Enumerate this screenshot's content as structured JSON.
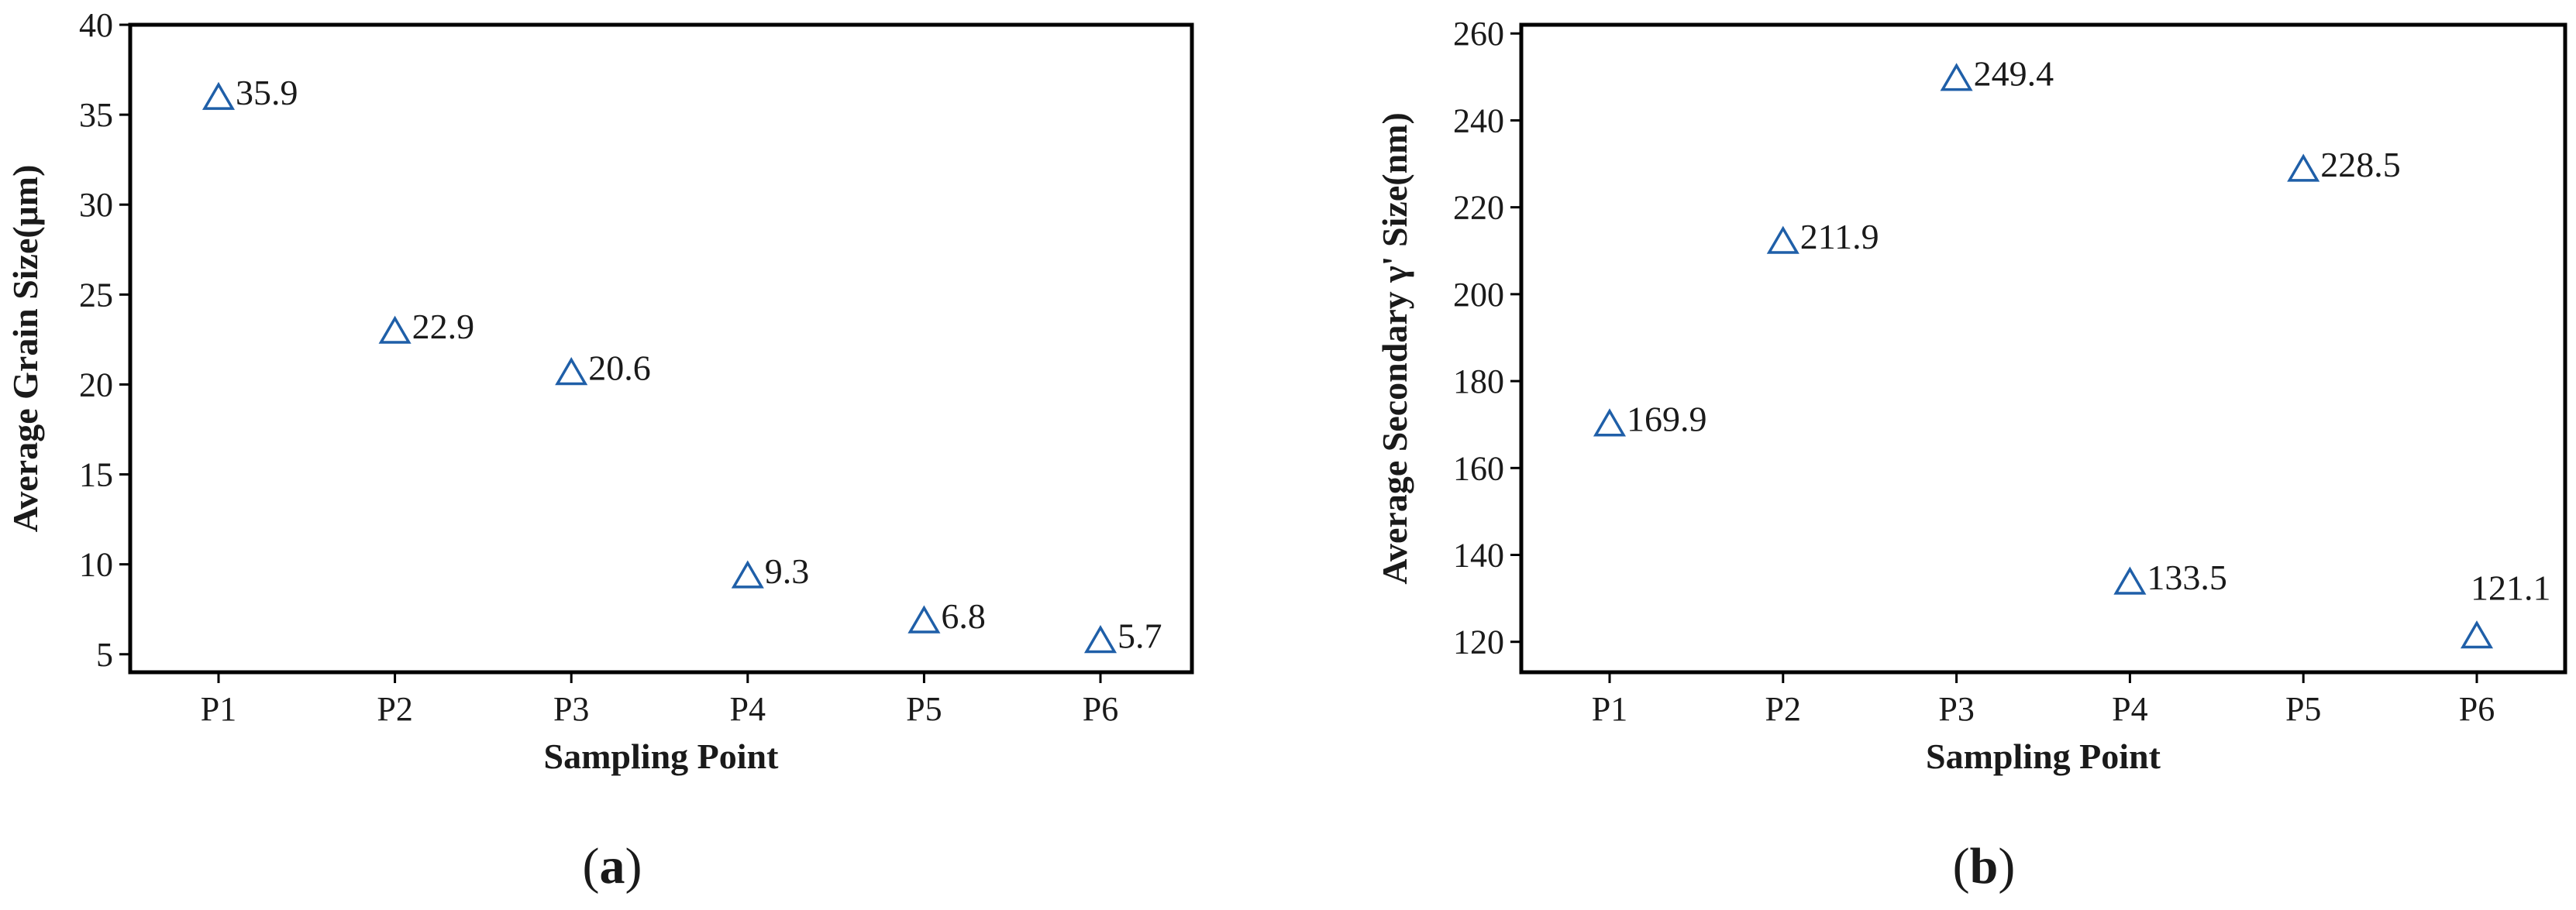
{
  "colors": {
    "marker": "#1f5fa8"
  },
  "chart_data": [
    {
      "type": "scatter",
      "panel_label": "a",
      "categories": [
        "P1",
        "P2",
        "P3",
        "P4",
        "P5",
        "P6"
      ],
      "xlabel": "Sampling Point",
      "ylabel": "Average Grain Size(μm)",
      "ylim": [
        4,
        40
      ],
      "yticks": [
        5,
        10,
        15,
        20,
        25,
        30,
        35,
        40
      ],
      "marker": "open-triangle",
      "values": [
        35.9,
        22.9,
        20.6,
        9.3,
        6.8,
        5.7
      ],
      "data_labels": [
        "35.9",
        "22.9",
        "20.6",
        "9.3",
        "6.8",
        "5.7"
      ]
    },
    {
      "type": "scatter",
      "panel_label": "b",
      "categories": [
        "P1",
        "P2",
        "P3",
        "P4",
        "P5",
        "P6"
      ],
      "xlabel": "Sampling Point",
      "ylabel": "Average Secondary γ' Size(nm)",
      "ylim": [
        113,
        262
      ],
      "yticks": [
        120,
        140,
        160,
        180,
        200,
        220,
        240,
        260
      ],
      "marker": "open-triangle",
      "values": [
        169.9,
        211.9,
        249.4,
        133.5,
        228.5,
        121.1
      ],
      "data_labels": [
        "169.9",
        "211.9",
        "249.4",
        "133.5",
        "228.5",
        "121.1"
      ]
    }
  ]
}
